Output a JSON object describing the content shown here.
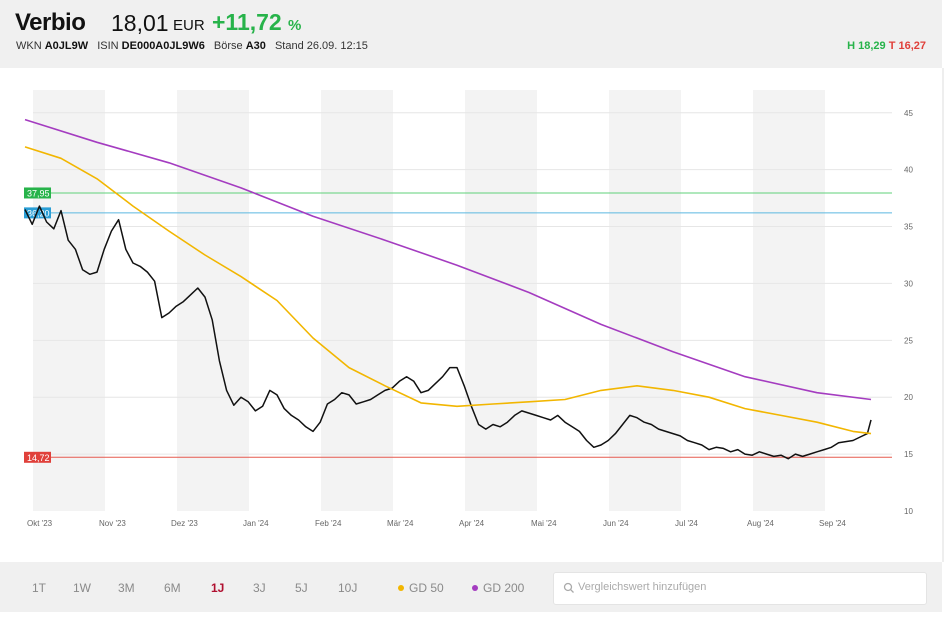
{
  "header": {
    "name": "Verbio",
    "price": "18,01",
    "currency": "EUR",
    "change": "+11,72",
    "change_unit": "%",
    "wkn_label": "WKN",
    "wkn": "A0JL9W",
    "isin_label": "ISIN",
    "isin": "DE000A0JL9W6",
    "exchange_label": "Börse",
    "exchange": "A30",
    "stand": "Stand 26.09. 12:15",
    "high": "H 18,29",
    "low": "T 16,27"
  },
  "ranges": {
    "r1t": "1T",
    "r1w": "1W",
    "r3m": "3M",
    "r6m": "6M",
    "r1j": "1J",
    "r3j": "3J",
    "r5j": "5J",
    "r10j": "10J"
  },
  "legend": {
    "gd50": "GD 50",
    "gd200": "GD 200"
  },
  "search": {
    "placeholder": "Vergleichswert hinzufügen"
  },
  "colors": {
    "price": "#111111",
    "gd50": "#f2b600",
    "gd200": "#a43cc0",
    "high_line": "#5fd07a",
    "mid_line": "#5bb8e0",
    "low_line": "#e65a4f",
    "positive": "#27b34a",
    "active_range": "#b01030"
  },
  "chart_data": {
    "type": "line",
    "ylim": [
      10,
      47
    ],
    "yticks": [
      10,
      15,
      20,
      25,
      30,
      35,
      40,
      45
    ],
    "grid": true,
    "x_labels": [
      "Okt '23",
      "Nov '23",
      "Dez '23",
      "Jan '24",
      "Feb '24",
      "Mär '24",
      "Apr '24",
      "Mai '24",
      "Jun '24",
      "Jul '24",
      "Aug '24",
      "Sep '24"
    ],
    "hlines": [
      {
        "label": "37,95",
        "value": 37.95
      },
      {
        "label": "36,20",
        "value": 36.2
      },
      {
        "label": "14,72",
        "value": 14.72
      }
    ],
    "series": [
      {
        "name": "Verbio",
        "x": [
          0,
          0.1,
          0.2,
          0.3,
          0.4,
          0.5,
          0.6,
          0.7,
          0.8,
          0.9,
          1.0,
          1.1,
          1.2,
          1.3,
          1.4,
          1.5,
          1.6,
          1.7,
          1.8,
          1.9,
          2.0,
          2.1,
          2.2,
          2.3,
          2.4,
          2.5,
          2.6,
          2.7,
          2.8,
          2.9,
          3.0,
          3.1,
          3.2,
          3.3,
          3.4,
          3.5,
          3.6,
          3.7,
          3.8,
          3.9,
          4.0,
          4.1,
          4.2,
          4.3,
          4.4,
          4.5,
          4.6,
          4.7,
          4.8,
          4.9,
          5.0,
          5.1,
          5.2,
          5.3,
          5.4,
          5.5,
          5.6,
          5.7,
          5.8,
          5.9,
          6.0,
          6.1,
          6.2,
          6.3,
          6.4,
          6.5,
          6.6,
          6.7,
          6.8,
          6.9,
          7.0,
          7.1,
          7.2,
          7.3,
          7.4,
          7.5,
          7.6,
          7.7,
          7.8,
          7.9,
          8.0,
          8.1,
          8.2,
          8.3,
          8.4,
          8.5,
          8.6,
          8.7,
          8.8,
          8.9,
          9.0,
          9.1,
          9.2,
          9.3,
          9.4,
          9.5,
          9.6,
          9.7,
          9.8,
          9.9,
          10.0,
          10.1,
          10.2,
          10.3,
          10.4,
          10.5,
          10.6,
          10.7,
          10.8,
          10.9,
          11.0,
          11.1,
          11.2,
          11.3,
          11.4,
          11.5,
          11.6,
          11.7,
          11.75
        ],
        "values": [
          36.5,
          35.2,
          36.8,
          35.4,
          34.8,
          36.4,
          33.8,
          33.0,
          31.2,
          30.8,
          31.0,
          33.0,
          34.6,
          35.6,
          33.0,
          31.8,
          31.5,
          31.0,
          30.2,
          27.0,
          27.4,
          28.0,
          28.4,
          29.0,
          29.6,
          28.8,
          26.8,
          23.2,
          20.6,
          19.3,
          20.0,
          19.6,
          18.8,
          19.2,
          20.6,
          20.2,
          19.0,
          18.4,
          18.0,
          17.4,
          17.0,
          17.8,
          19.4,
          19.8,
          20.4,
          20.2,
          19.4,
          19.6,
          19.8,
          20.2,
          20.6,
          20.8,
          21.4,
          21.8,
          21.4,
          20.4,
          20.6,
          21.2,
          21.8,
          22.6,
          22.6,
          21.0,
          19.2,
          17.6,
          17.2,
          17.6,
          17.4,
          17.8,
          18.4,
          18.8,
          18.6,
          18.4,
          18.2,
          18.0,
          18.4,
          17.8,
          17.4,
          17.0,
          16.2,
          15.6,
          15.8,
          16.2,
          16.8,
          17.6,
          18.4,
          18.2,
          17.8,
          17.6,
          17.2,
          17.0,
          16.8,
          16.6,
          16.2,
          16.0,
          15.8,
          15.4,
          15.6,
          15.5,
          15.2,
          15.4,
          15.0,
          14.9,
          15.2,
          15.0,
          14.8,
          14.9,
          14.6,
          15.0,
          14.8,
          15.0,
          15.2,
          15.4,
          15.6,
          16.0,
          16.1,
          16.2,
          16.5,
          16.8,
          18.01
        ]
      },
      {
        "name": "GD 50",
        "x": [
          0,
          0.5,
          1.0,
          1.5,
          2.0,
          2.5,
          3.0,
          3.5,
          4.0,
          4.5,
          5.0,
          5.5,
          6.0,
          6.5,
          7.0,
          7.5,
          8.0,
          8.5,
          9.0,
          9.5,
          10.0,
          10.5,
          11.0,
          11.5,
          11.75
        ],
        "values": [
          42.0,
          41.0,
          39.2,
          36.8,
          34.6,
          32.5,
          30.6,
          28.5,
          25.2,
          22.6,
          21.0,
          19.5,
          19.2,
          19.4,
          19.6,
          19.8,
          20.6,
          21.0,
          20.6,
          20.0,
          19.0,
          18.4,
          17.8,
          17.0,
          16.8
        ]
      },
      {
        "name": "GD 200",
        "x": [
          0,
          1,
          2,
          3,
          4,
          5,
          6,
          7,
          8,
          9,
          10,
          11,
          11.75
        ],
        "values": [
          44.4,
          42.4,
          40.6,
          38.4,
          35.9,
          33.8,
          31.6,
          29.2,
          26.4,
          24.0,
          21.8,
          20.4,
          19.8
        ]
      }
    ]
  }
}
